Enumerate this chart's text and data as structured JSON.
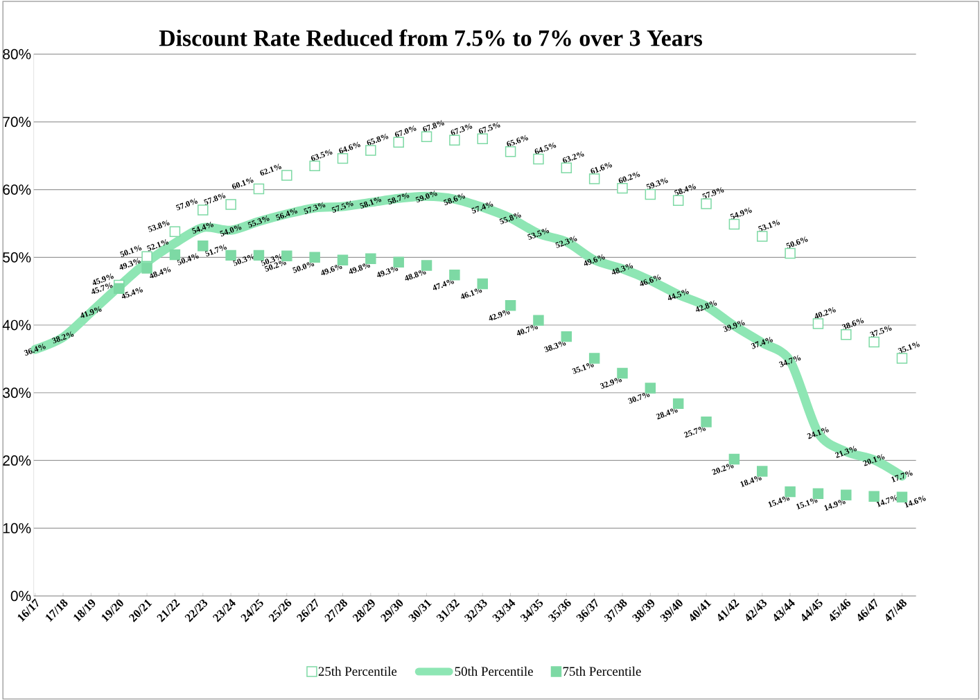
{
  "chart_data": {
    "type": "line",
    "title": "**Discount Rate Reduced from 7.5% to 7% over 3 Years**",
    "categories": [
      "16/17",
      "17/18",
      "18/19",
      "19/20",
      "20/21",
      "21/22",
      "22/23",
      "23/24",
      "24/25",
      "25/26",
      "26/27",
      "27/28",
      "28/29",
      "29/30",
      "30/31",
      "31/32",
      "32/33",
      "33/34",
      "34/35",
      "35/36",
      "36/37",
      "37/38",
      "38/39",
      "39/40",
      "40/41",
      "41/42",
      "42/43",
      "43/44",
      "44/45",
      "45/46",
      "46/47",
      "47/48"
    ],
    "series": [
      {
        "name": "25th Percentile",
        "type": "scatter",
        "marker": "square",
        "color": "#7dd9a4",
        "values": [
          null,
          null,
          null,
          45.9,
          50.1,
          53.8,
          57.0,
          57.8,
          60.1,
          62.1,
          63.5,
          64.6,
          65.8,
          67.0,
          67.8,
          67.3,
          67.5,
          65.6,
          64.5,
          63.2,
          61.6,
          60.2,
          59.3,
          58.4,
          57.9,
          54.9,
          53.1,
          50.6,
          40.2,
          38.6,
          37.5,
          35.1
        ],
        "value_labels": [
          null,
          null,
          null,
          "45.9%",
          "50.1%",
          "53.8%",
          "57.0%",
          "57.8%",
          "60.1%",
          "62.1%",
          "63.5%",
          "64.6%",
          "65.8%",
          "67.0%",
          "67.8%",
          "67.3%",
          "67.5%",
          "65.6%",
          "64.5%",
          "63.2%",
          "61.6%",
          "60.2%",
          "59.3%",
          "58.4%",
          "57.9%",
          "54.9%",
          "53.1%",
          "50.6%",
          "40.2%",
          "38.6%",
          "37.5%",
          "35.1%"
        ]
      },
      {
        "name": "50th Percentile",
        "marker": "none",
        "color": "#8ee6b4",
        "values": [
          36.4,
          38.2,
          41.9,
          45.7,
          49.3,
          52.1,
          54.4,
          54.0,
          55.3,
          56.4,
          57.3,
          57.5,
          58.1,
          58.7,
          59.0,
          58.6,
          57.4,
          55.8,
          53.5,
          52.3,
          49.6,
          48.3,
          46.6,
          44.5,
          42.8,
          39.9,
          37.4,
          34.7,
          24.1,
          21.3,
          20.1,
          17.7
        ],
        "value_labels": [
          "36.4%",
          "38.2%",
          "41.9%",
          "45.7%",
          "49.3%",
          "52.1%",
          "54.4%",
          "54.0%",
          "55.3%",
          "56.4%",
          "57.3%",
          "57.5%",
          "58.1%",
          "58.7%",
          "59.0%",
          "58.6%",
          "57.4%",
          "55.8%",
          "53.5%",
          "52.3%",
          "49.6%",
          "48.3%",
          "46.6%",
          "44.5%",
          "42.8%",
          "39.9%",
          "37.4%",
          "34.7%",
          "24.1%",
          "21.3%",
          "20.1%",
          "17.7%"
        ]
      },
      {
        "name": "75th Percentile",
        "type": "scatter",
        "marker": "square",
        "color": "#7dd9a4",
        "values": [
          null,
          null,
          null,
          45.4,
          48.4,
          50.4,
          51.7,
          50.3,
          50.3,
          50.2,
          50.0,
          49.6,
          49.8,
          49.3,
          48.8,
          47.4,
          46.1,
          42.9,
          40.7,
          38.3,
          35.1,
          32.9,
          30.7,
          28.4,
          25.7,
          20.2,
          18.4,
          15.4,
          15.1,
          14.9,
          14.7,
          14.6
        ],
        "value_labels": [
          null,
          null,
          null,
          "45.4%",
          "48.4%",
          "50.4%",
          "51.7%",
          "50.3%",
          "50.3%",
          "50.2%",
          "50.0%",
          "49.6%",
          "49.8%",
          "49.3%",
          "48.8%",
          "47.4%",
          "46.1%",
          "42.9%",
          "40.7%",
          "38.3%",
          "35.1%",
          "32.9%",
          "30.7%",
          "28.4%",
          "25.7%",
          "20.2%",
          "18.4%",
          "15.4%",
          "15.1%",
          "14.9%",
          "14.7%",
          "14.6%"
        ]
      }
    ],
    "ylim": [
      0,
      80
    ],
    "yticks": [
      {
        "value": 0,
        "label": "0%"
      },
      {
        "value": 10,
        "label": "10%"
      },
      {
        "value": 20,
        "label": "20%"
      },
      {
        "value": 30,
        "label": "30%"
      },
      {
        "value": 40,
        "label": "40%"
      },
      {
        "value": 50,
        "label": "50%"
      },
      {
        "value": 60,
        "label": "60%"
      },
      {
        "value": 70,
        "label": "70%"
      },
      {
        "value": 80,
        "label": "80%"
      }
    ],
    "grid": "y",
    "legend": "bottom"
  }
}
